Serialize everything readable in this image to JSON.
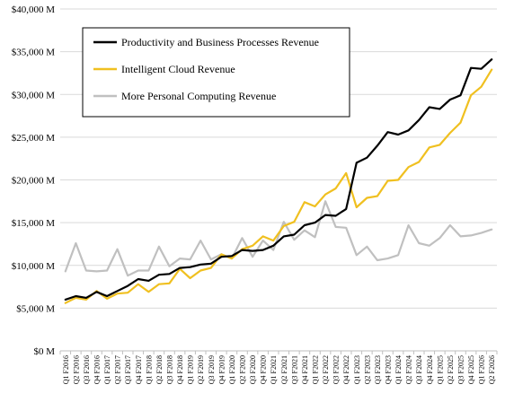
{
  "chart_data": {
    "type": "line",
    "title": "",
    "xlabel": "",
    "ylabel": "",
    "ylim": [
      0,
      40000
    ],
    "y_ticks": [
      0,
      5000,
      10000,
      15000,
      20000,
      25000,
      30000,
      35000,
      40000
    ],
    "y_tick_labels": [
      "$0 M",
      "$5,000 M",
      "$10,000 M",
      "$15,000 M",
      "$20,000 M",
      "$25,000 M",
      "$30,000 M",
      "$35,000 M",
      "$40,000 M"
    ],
    "grid": "horizontal",
    "legend_position": "top-left",
    "categories": [
      "Q1 F2016",
      "Q2 F2016",
      "Q3 F2016",
      "Q4 F2016",
      "Q1 F2017",
      "Q2 F2017",
      "Q3 F2017",
      "Q4 F2017",
      "Q1 F2018",
      "Q2 F2018",
      "Q3 F2018",
      "Q4 F2018",
      "Q1 F2019",
      "Q2 F2019",
      "Q3 F2019",
      "Q4 F2019",
      "Q1 F2020",
      "Q2 F2020",
      "Q3 F2020",
      "Q4 F2020",
      "Q1 F2021",
      "Q2 F2021",
      "Q3 F2021",
      "Q4 F2021",
      "Q1 F2022",
      "Q2 F2022",
      "Q3 F2022",
      "Q4 F2022",
      "Q1 F2023",
      "Q2 F2023",
      "Q3 F2023",
      "Q4 F2023",
      "Q1 F2024",
      "Q2 F2024",
      "Q3 F2024",
      "Q4 F2024",
      "Q1 F2025",
      "Q2 F2025",
      "Q3 F2025",
      "Q4 F2025",
      "Q1 F2026",
      "Q2 F2026"
    ],
    "series": [
      {
        "name": "Productivity and Business Processes Revenue",
        "color": "#000000",
        "values": [
          6000,
          6400,
          6200,
          6900,
          6400,
          7000,
          7600,
          8400,
          8200,
          8900,
          9000,
          9700,
          9800,
          10100,
          10200,
          11000,
          11100,
          11800,
          11700,
          11800,
          12300,
          13400,
          13600,
          14700,
          15000,
          15900,
          15800,
          16600,
          22000,
          22600,
          24000,
          25600,
          25300,
          25800,
          27000,
          28500,
          28300,
          29400,
          29900,
          33100,
          33000,
          34100
        ]
      },
      {
        "name": "Intelligent Cloud Revenue",
        "color": "#f0c020",
        "values": [
          5600,
          6200,
          6000,
          7000,
          6100,
          6700,
          6800,
          7800,
          6900,
          7800,
          7900,
          9600,
          8500,
          9400,
          9700,
          11300,
          10800,
          11900,
          12300,
          13400,
          12900,
          14600,
          15100,
          17400,
          16900,
          18300,
          19000,
          20800,
          16800,
          17900,
          18100,
          19900,
          20000,
          21500,
          22100,
          23800,
          24100,
          25500,
          26700,
          29900,
          30900,
          32900
        ]
      },
      {
        "name": "More Personal Computing Revenue",
        "color": "#c0c0c0",
        "values": [
          9300,
          12600,
          9400,
          9300,
          9400,
          11900,
          8800,
          9400,
          9400,
          12200,
          9900,
          10800,
          10700,
          12900,
          10700,
          11300,
          10800,
          13200,
          11000,
          12900,
          11800,
          15100,
          13000,
          14100,
          13300,
          17500,
          14500,
          14400,
          11200,
          12200,
          10600,
          10800,
          11200,
          14700,
          12600,
          12300,
          13200,
          14700,
          13400,
          13500,
          13800,
          14200
        ]
      }
    ]
  }
}
